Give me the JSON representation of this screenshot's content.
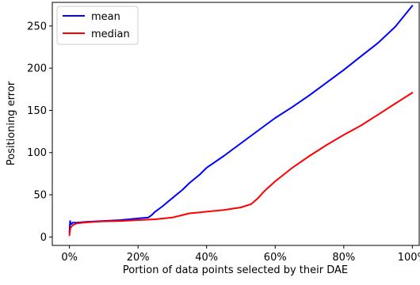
{
  "chart_data": {
    "type": "line",
    "title": "",
    "xlabel": "Portion of data points selected by their DAE",
    "ylabel": "Positioning error",
    "xlim": [
      -0.05,
      1.02
    ],
    "ylim": [
      -10,
      278
    ],
    "x_ticks": [
      0,
      0.2,
      0.4,
      0.6,
      0.8,
      1.0
    ],
    "x_tick_labels": [
      "0%",
      "20%",
      "40%",
      "60%",
      "80%",
      "100%"
    ],
    "y_ticks": [
      0,
      50,
      100,
      150,
      200,
      250
    ],
    "y_tick_labels": [
      "0",
      "50",
      "100",
      "150",
      "200",
      "250"
    ],
    "grid": false,
    "legend_position": "top-left",
    "series": [
      {
        "name": "mean",
        "color": "#0000ff",
        "x": [
          0.0,
          0.002,
          0.004,
          0.007,
          0.01,
          0.02,
          0.05,
          0.1,
          0.15,
          0.2,
          0.23,
          0.24,
          0.25,
          0.27,
          0.3,
          0.33,
          0.35,
          0.38,
          0.4,
          0.45,
          0.5,
          0.55,
          0.6,
          0.65,
          0.7,
          0.75,
          0.8,
          0.85,
          0.9,
          0.95,
          1.0
        ],
        "y": [
          5,
          19,
          15,
          16,
          17,
          17,
          18,
          19,
          20,
          22,
          23,
          26,
          30,
          36,
          46,
          56,
          64,
          74,
          82,
          96,
          111,
          126,
          141,
          154,
          168,
          183,
          198,
          214,
          230,
          249,
          274
        ]
      },
      {
        "name": "median",
        "color": "#ff0000",
        "x": [
          0.0,
          0.002,
          0.005,
          0.01,
          0.02,
          0.04,
          0.07,
          0.1,
          0.15,
          0.2,
          0.25,
          0.3,
          0.33,
          0.35,
          0.4,
          0.45,
          0.5,
          0.53,
          0.55,
          0.57,
          0.6,
          0.65,
          0.7,
          0.75,
          0.8,
          0.85,
          0.9,
          0.95,
          1.0
        ],
        "y": [
          2,
          9,
          12,
          14,
          16,
          17,
          18,
          18.5,
          19,
          20,
          21,
          23,
          26,
          28,
          30,
          32,
          35,
          39,
          46,
          55,
          66,
          82,
          96,
          109,
          121,
          132,
          145,
          158,
          171
        ]
      }
    ]
  }
}
